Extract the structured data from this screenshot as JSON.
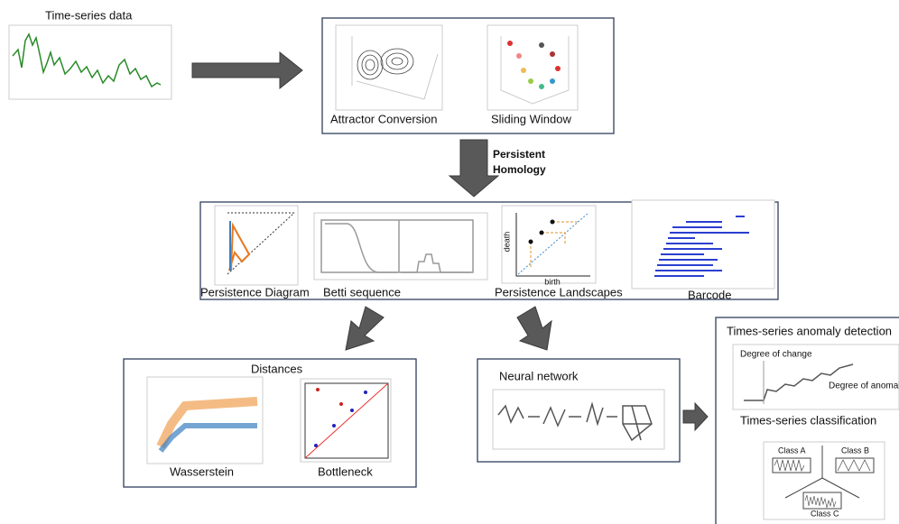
{
  "input": {
    "label": "Time-series data"
  },
  "embedding": {
    "items": [
      "Attractor Conversion",
      "Sliding Window"
    ]
  },
  "step": {
    "label_lines": [
      "Persistent",
      "Homology"
    ]
  },
  "representations": {
    "items": [
      "Persistence Diagram",
      "Betti sequence",
      "Persistence Landscapes",
      "Barcode"
    ],
    "axis_labels": [
      "death",
      "birth"
    ]
  },
  "distances": {
    "title": "Distances",
    "items": [
      "Wasserstein",
      "Bottleneck"
    ]
  },
  "neural": {
    "title": "Neural network"
  },
  "tasks": {
    "anomaly": {
      "title": "Times-series anomaly detection",
      "annotations": [
        "Degree of change",
        "Degree of anomaly"
      ]
    },
    "classification": {
      "title": "Times-series classification",
      "classes": [
        "Class A",
        "Class B",
        "Class C"
      ]
    }
  }
}
